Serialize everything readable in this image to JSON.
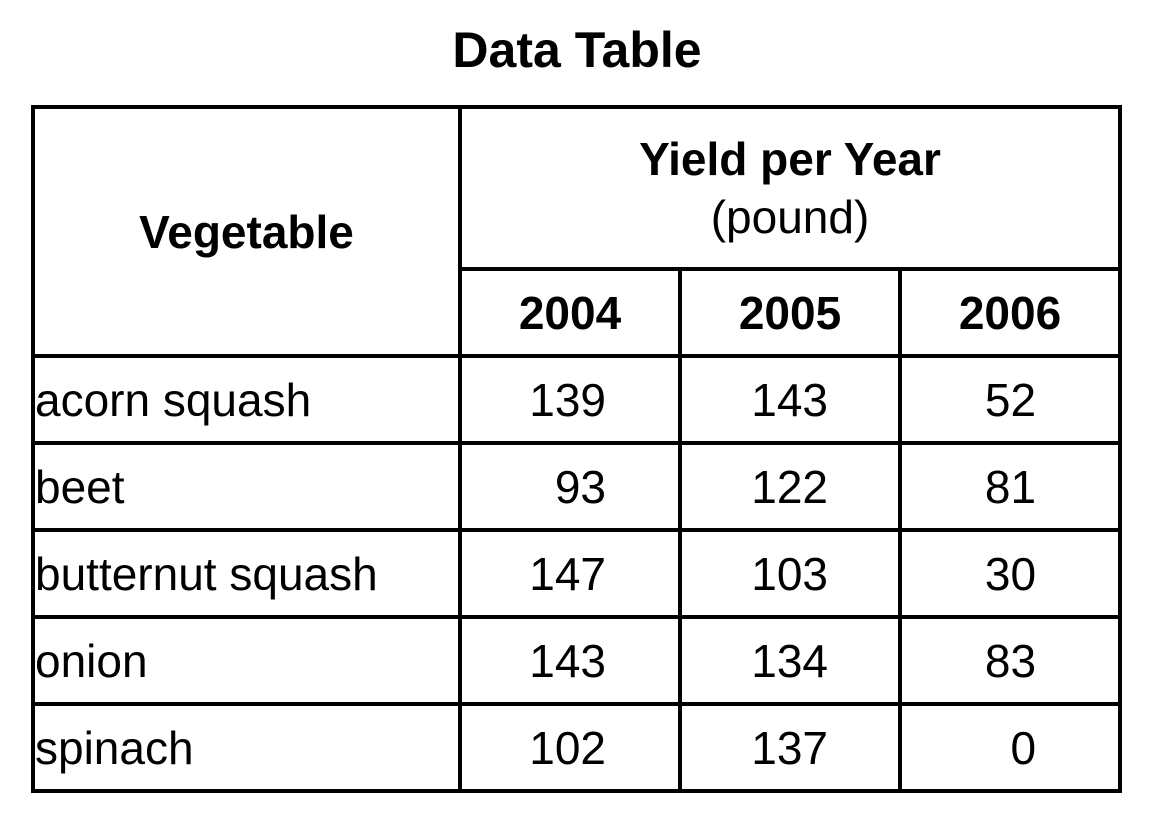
{
  "title": "Data Table",
  "table": {
    "vegetable_header": "Vegetable",
    "yield_header": "Yield per Year",
    "yield_unit": "(pound)",
    "years": [
      "2004",
      "2005",
      "2006"
    ],
    "rows": [
      {
        "vegetable": "acorn squash",
        "values": [
          "139",
          "143",
          "52"
        ]
      },
      {
        "vegetable": "beet",
        "values": [
          "93",
          "122",
          "81"
        ]
      },
      {
        "vegetable": "butternut squash",
        "values": [
          "147",
          "103",
          "30"
        ]
      },
      {
        "vegetable": "onion",
        "values": [
          "143",
          "134",
          "83"
        ]
      },
      {
        "vegetable": "spinach",
        "values": [
          "102",
          "137",
          "0"
        ]
      }
    ]
  }
}
